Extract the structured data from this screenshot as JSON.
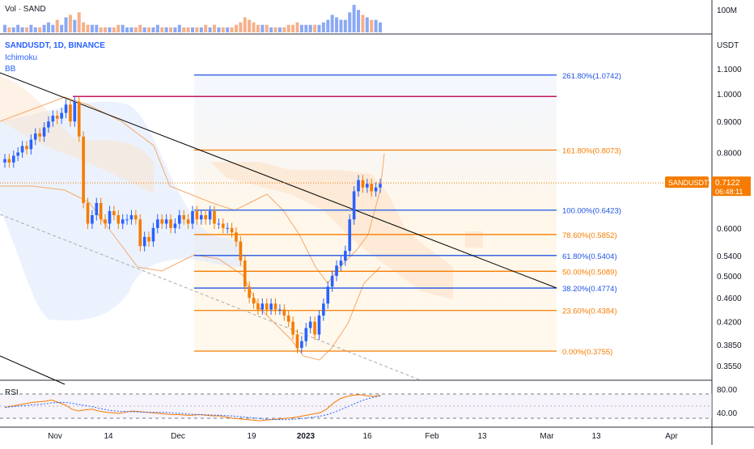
{
  "volume_pane": {
    "label": "Vol · SAND",
    "axis_label": "100M"
  },
  "header": {
    "symbol_line": "SANDUSDT, 1D, BINANCE",
    "indicator_1": "Ichimoku",
    "indicator_2": "BB"
  },
  "price_axis": {
    "unit_label": "USDT",
    "ticks": [
      "1.1000",
      "1.0000",
      "0.9000",
      "0.8000",
      "0.6000",
      "0.5400",
      "0.5000",
      "0.4600",
      "0.4200",
      "0.3850",
      "0.3550"
    ]
  },
  "price_tag": {
    "symbol": "SANDUSDT",
    "price": "0.7122",
    "countdown": "06:48:11"
  },
  "fib_levels": [
    {
      "label": "261.80%(1.0742)",
      "value": 1.0742,
      "color": "#1e53e5"
    },
    {
      "label": "161.80%(0.8073)",
      "value": 0.8073,
      "color": "#f57c00"
    },
    {
      "label": "100.00%(0.6423)",
      "value": 0.6423,
      "color": "#1e53e5"
    },
    {
      "label": "78.60%(0.5852)",
      "value": 0.5852,
      "color": "#f57c00"
    },
    {
      "label": "61.80%(0.5404)",
      "value": 0.5404,
      "color": "#1e53e5"
    },
    {
      "label": "50.00%(0.5089)",
      "value": 0.5089,
      "color": "#f57c00"
    },
    {
      "label": "38.20%(0.4774)",
      "value": 0.4774,
      "color": "#1e53e5"
    },
    {
      "label": "23.60%(0.4384)",
      "value": 0.4384,
      "color": "#f57c00"
    },
    {
      "label": "0.00%(0.3755)",
      "value": 0.3755,
      "color": "#f57c00"
    }
  ],
  "rsi_pane": {
    "label": "RSI",
    "ticks": [
      "80.00",
      "40.00"
    ]
  },
  "time_axis": [
    "Nov",
    "14",
    "Dec",
    "19",
    "2023",
    "16",
    "Feb",
    "13",
    "Mar",
    "13",
    "Apr"
  ],
  "colors": {
    "up": "#2962ff",
    "down": "#f57c00",
    "resistance": "#c2185b",
    "trendline": "#000000"
  },
  "chart_data": {
    "type": "candlestick",
    "symbol": "SANDUSDT",
    "interval": "1D",
    "exchange": "BINANCE",
    "last_price": 0.7122,
    "resistance_level": 0.99,
    "candles_close": [
      0.78,
      0.77,
      0.79,
      0.8,
      0.82,
      0.81,
      0.84,
      0.86,
      0.85,
      0.88,
      0.9,
      0.92,
      0.91,
      0.93,
      0.96,
      0.9,
      0.97,
      0.85,
      0.66,
      0.61,
      0.63,
      0.66,
      0.62,
      0.61,
      0.64,
      0.63,
      0.61,
      0.62,
      0.62,
      0.63,
      0.62,
      0.56,
      0.58,
      0.57,
      0.6,
      0.62,
      0.61,
      0.62,
      0.6,
      0.61,
      0.63,
      0.62,
      0.61,
      0.64,
      0.62,
      0.63,
      0.62,
      0.64,
      0.61,
      0.61,
      0.6,
      0.6,
      0.59,
      0.57,
      0.53,
      0.48,
      0.46,
      0.45,
      0.44,
      0.45,
      0.44,
      0.45,
      0.44,
      0.44,
      0.43,
      0.42,
      0.4,
      0.38,
      0.39,
      0.41,
      0.42,
      0.4,
      0.43,
      0.45,
      0.48,
      0.5,
      0.52,
      0.53,
      0.55,
      0.62,
      0.69,
      0.72,
      0.7,
      0.71,
      0.69,
      0.7,
      0.71
    ],
    "volume": [
      3,
      2,
      2,
      3,
      2,
      2,
      3,
      2,
      2,
      3,
      4,
      3,
      5,
      3,
      6,
      7,
      5,
      8,
      4,
      3,
      3,
      3,
      2,
      2,
      2,
      2,
      3,
      3,
      2,
      2,
      2,
      3,
      2,
      2,
      2,
      3,
      2,
      2,
      2,
      2,
      3,
      2,
      2,
      2,
      2,
      2,
      3,
      2,
      3,
      2,
      2,
      2,
      2,
      3,
      4,
      6,
      5,
      4,
      3,
      3,
      3,
      2,
      2,
      2,
      2,
      3,
      3,
      4,
      3,
      3,
      3,
      3,
      3,
      4,
      5,
      7,
      6,
      5,
      5,
      8,
      11,
      9,
      7,
      6,
      5,
      5,
      4
    ],
    "rsi": [
      58,
      60,
      62,
      64,
      66,
      67,
      68,
      70,
      66,
      62,
      55,
      52,
      54,
      55,
      52,
      50,
      49,
      48,
      50,
      52,
      51,
      50,
      49,
      48,
      47,
      46,
      46,
      45,
      45,
      46,
      45,
      44,
      44,
      42,
      40,
      39,
      38,
      37,
      36,
      37,
      38,
      39,
      40,
      41,
      43,
      45,
      47,
      49,
      55,
      65,
      72,
      76,
      78,
      79,
      77,
      76,
      78
    ]
  }
}
